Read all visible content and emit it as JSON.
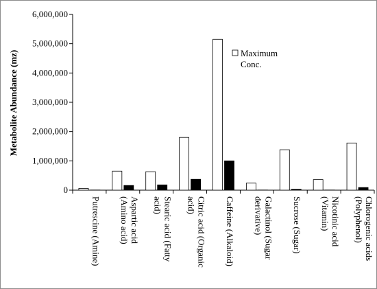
{
  "chart_data": {
    "type": "bar",
    "ylabel": "Metabolite Abundance (mz)",
    "ylim": [
      0,
      6000000
    ],
    "yticks": [
      "0",
      "1,000,000",
      "2,000,000",
      "3,000,000",
      "4,000,000",
      "5,000,000",
      "6,000,000"
    ],
    "ytick_values": [
      0,
      1000000,
      2000000,
      3000000,
      4000000,
      5000000,
      6000000
    ],
    "categories": [
      [
        "Putrescine (Amine)"
      ],
      [
        "Aspartic acid",
        "(Amino acid)"
      ],
      [
        "Stearic acid (Fatty",
        "acid)"
      ],
      [
        "Citric acid (Organic",
        "acid)"
      ],
      [
        "Caffeine (Alkaloid)"
      ],
      [
        "Galactinol (Sugar",
        "derivative)"
      ],
      [
        "Sucrose (Sugar)"
      ],
      [
        "Nicotinic acid",
        "(Vitamin)"
      ],
      [
        "Chlorogenic acids",
        "(Polyphenol)"
      ]
    ],
    "series": [
      {
        "name": "Maximum Conc.",
        "legend_lines": [
          "Maximum",
          "Conc."
        ],
        "color": "#ffffff",
        "values": [
          60000,
          650000,
          630000,
          1800000,
          5150000,
          240000,
          1380000,
          360000,
          1610000
        ]
      },
      {
        "color": "#000000",
        "values": [
          5000,
          160000,
          180000,
          370000,
          1000000,
          5000,
          30000,
          5000,
          90000
        ]
      }
    ],
    "legend_position": "top-right",
    "grid": false
  }
}
